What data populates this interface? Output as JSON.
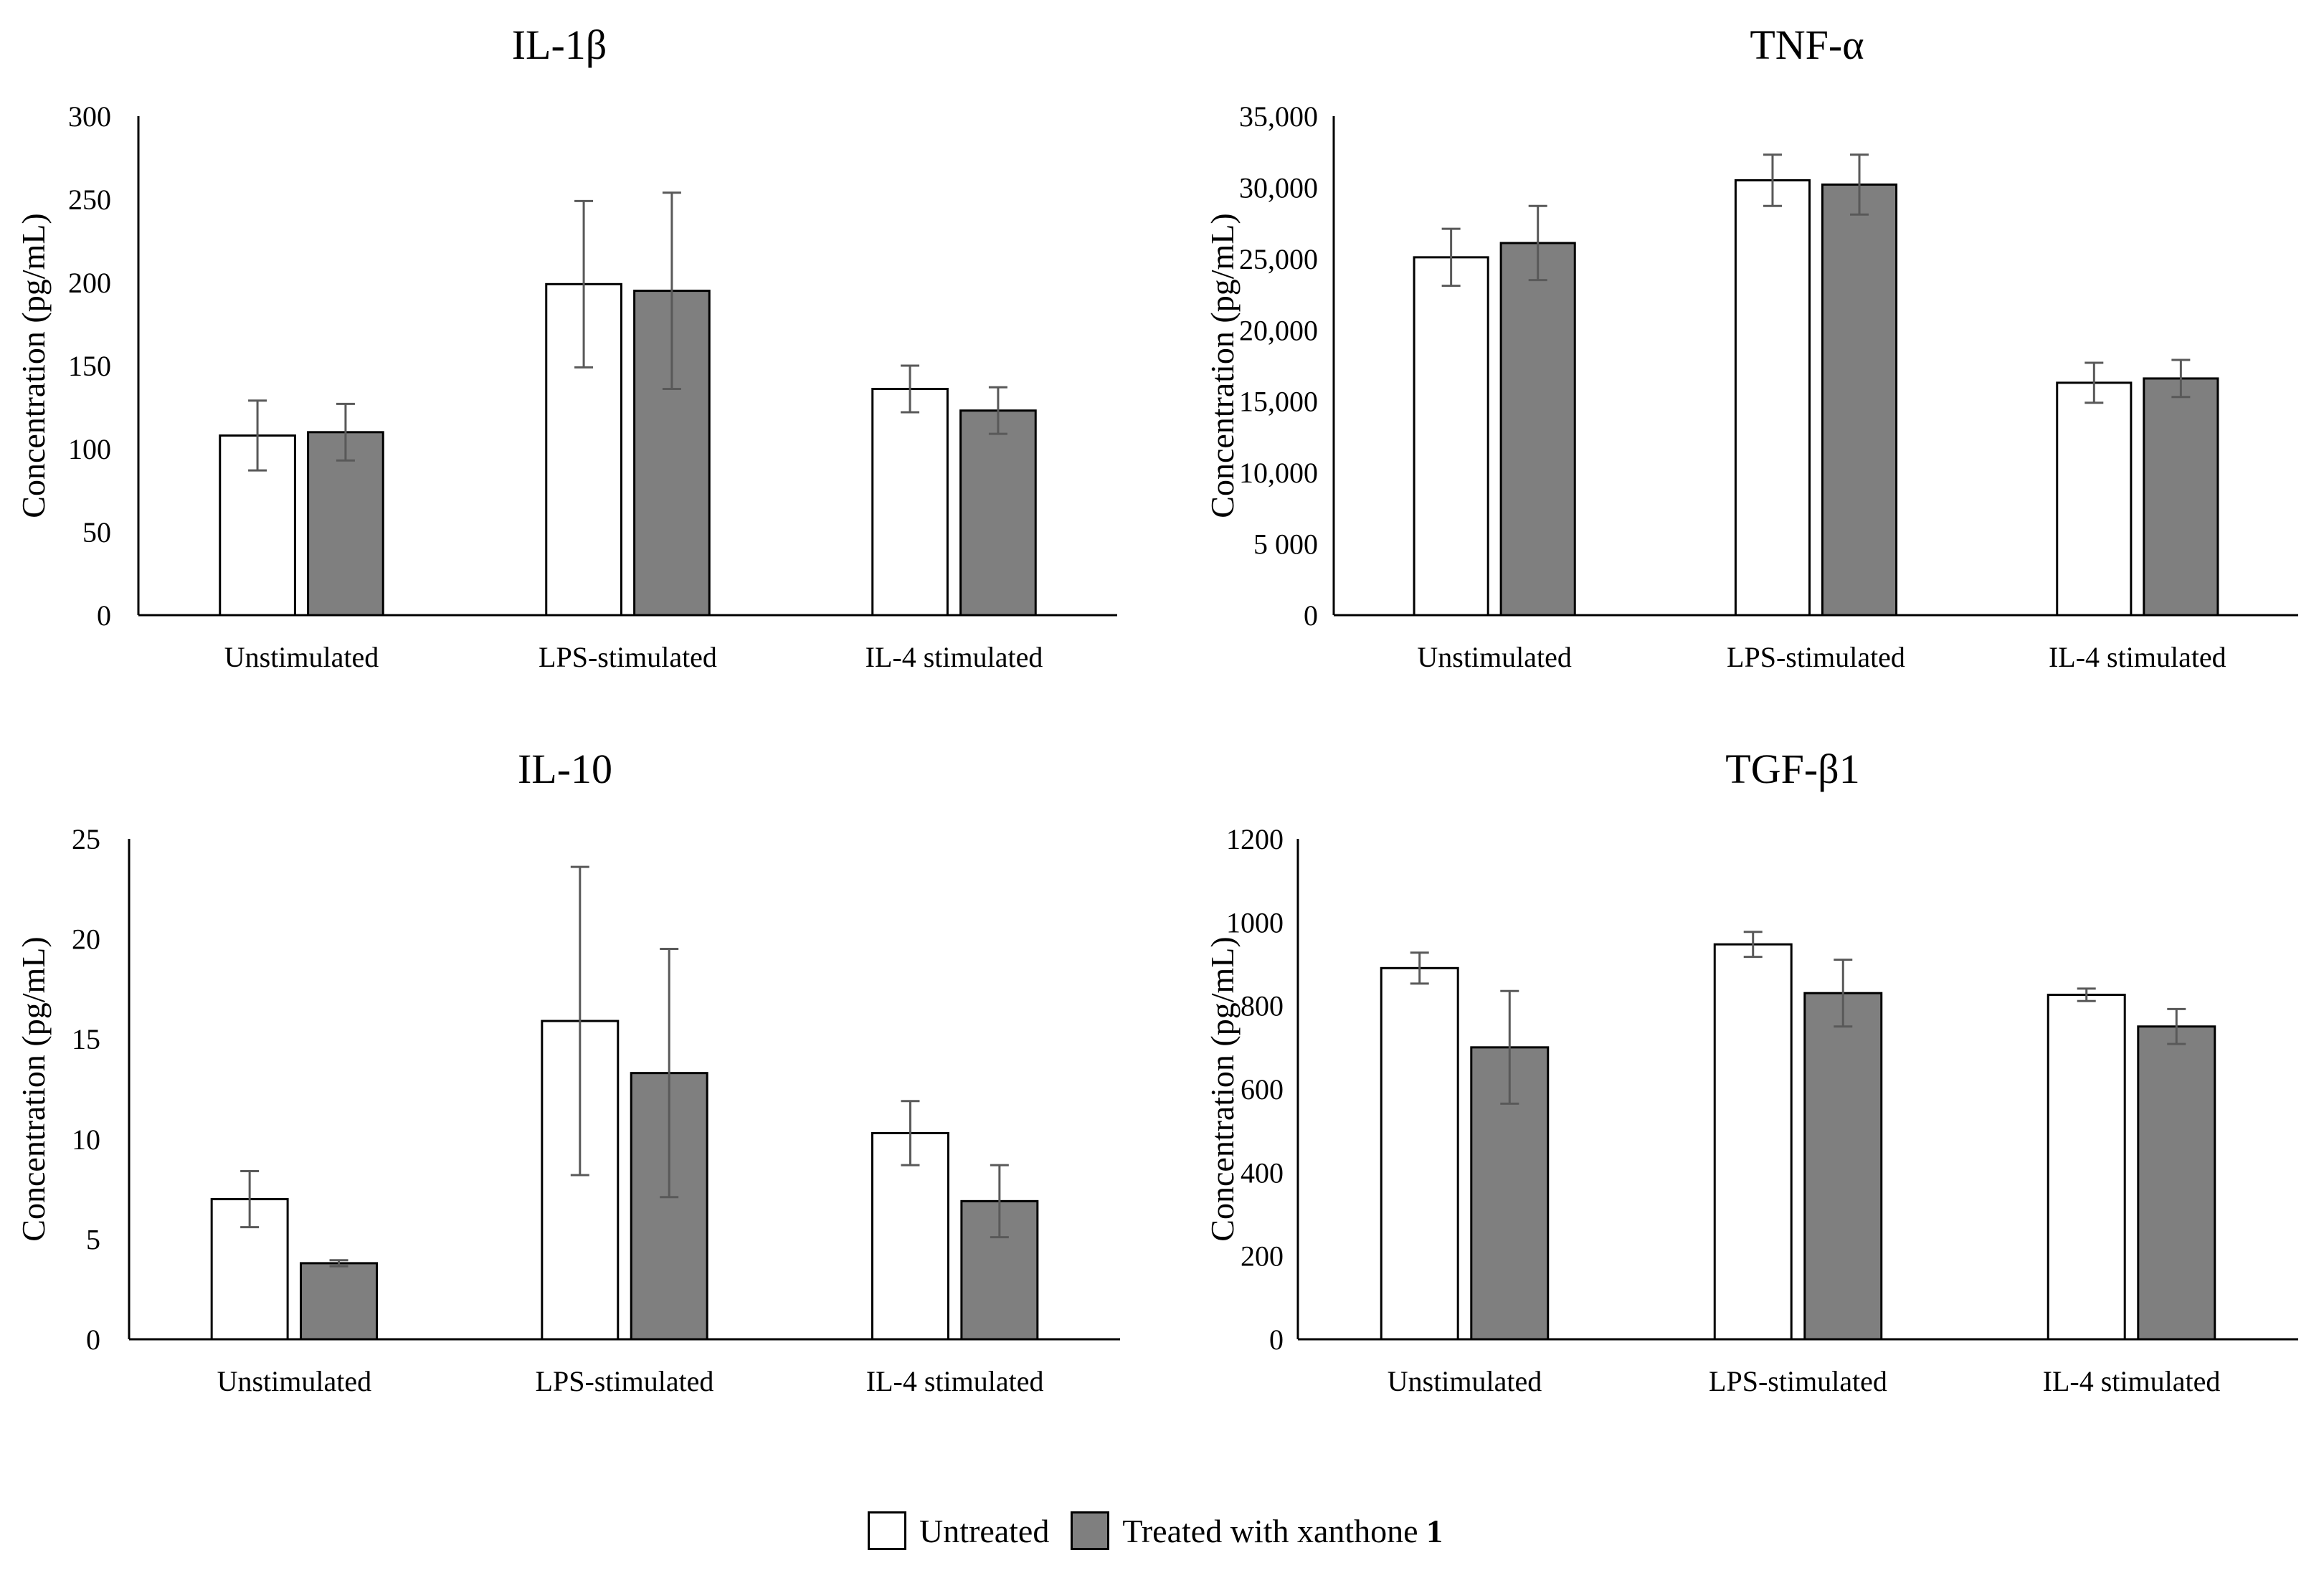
{
  "colors": {
    "untreated": "#ffffff",
    "treated": "#7f7f7f",
    "axis": "#000000",
    "error_bar": "#595959"
  },
  "legend": {
    "untreated": "Untreated",
    "treated_prefix": "Treated with xanthone",
    "treated_suffix": "1"
  },
  "chart_data": [
    {
      "type": "bar",
      "title": "IL-1β",
      "ylabel": "Concentration (pg/mL)",
      "xlabel": "",
      "categories": [
        "Unstimulated",
        "LPS-stimulated",
        "IL-4 stimulated"
      ],
      "ylim": [
        0,
        300
      ],
      "yticks": [
        0,
        50,
        100,
        150,
        200,
        250,
        300
      ],
      "ytick_labels": [
        "0",
        "50",
        "100",
        "150",
        "200",
        "250",
        "300"
      ],
      "series": [
        {
          "name": "Untreated",
          "values": [
            108,
            199,
            136
          ],
          "errors": [
            21,
            50,
            14
          ]
        },
        {
          "name": "Treated with xanthone 1",
          "values": [
            110,
            195,
            123
          ],
          "errors": [
            17,
            59,
            14
          ]
        }
      ]
    },
    {
      "type": "bar",
      "title": "TNF-α",
      "ylabel": "Concentration (pg/mL)",
      "xlabel": "",
      "categories": [
        "Unstimulated",
        "LPS-stimulated",
        "IL-4 stimulated"
      ],
      "ylim": [
        0,
        35000
      ],
      "yticks": [
        0,
        5000,
        10000,
        15000,
        20000,
        25000,
        30000,
        35000
      ],
      "ytick_labels": [
        "0",
        "5 000",
        "10,000",
        "15,000",
        "20,000",
        "25,000",
        "30,000",
        "35,000"
      ],
      "series": [
        {
          "name": "Untreated",
          "values": [
            25100,
            30500,
            16300
          ],
          "errors": [
            2000,
            1800,
            1400
          ]
        },
        {
          "name": "Treated with xanthone 1",
          "values": [
            26100,
            30200,
            16600
          ],
          "errors": [
            2600,
            2100,
            1300
          ]
        }
      ]
    },
    {
      "type": "bar",
      "title": "IL-10",
      "ylabel": "Concentration (pg/mL)",
      "xlabel": "",
      "categories": [
        "Unstimulated",
        "LPS-stimulated",
        "IL-4 stimulated"
      ],
      "ylim": [
        0,
        25
      ],
      "yticks": [
        0,
        5,
        10,
        15,
        20,
        25
      ],
      "ytick_labels": [
        "0",
        "5",
        "10",
        "15",
        "20",
        "25"
      ],
      "series": [
        {
          "name": "Untreated",
          "values": [
            7.0,
            15.9,
            10.3
          ],
          "errors": [
            1.4,
            7.7,
            1.6
          ]
        },
        {
          "name": "Treated with xanthone 1",
          "values": [
            3.8,
            13.3,
            6.9
          ],
          "errors": [
            0.15,
            6.2,
            1.8
          ]
        }
      ]
    },
    {
      "type": "bar",
      "title": "TGF-β1",
      "ylabel": "Concentration (pg/mL)",
      "xlabel": "",
      "categories": [
        "Unstimulated",
        "LPS-stimulated",
        "IL-4 stimulated"
      ],
      "ylim": [
        0,
        1200
      ],
      "yticks": [
        0,
        200,
        400,
        600,
        800,
        1000,
        1200
      ],
      "ytick_labels": [
        "0",
        "200",
        "400",
        "600",
        "800",
        "1000",
        "1200"
      ],
      "series": [
        {
          "name": "Untreated",
          "values": [
            890,
            947,
            826
          ],
          "errors": [
            37,
            30,
            15
          ]
        },
        {
          "name": "Treated with xanthone 1",
          "values": [
            700,
            830,
            750
          ],
          "errors": [
            135,
            80,
            42
          ]
        }
      ]
    }
  ]
}
